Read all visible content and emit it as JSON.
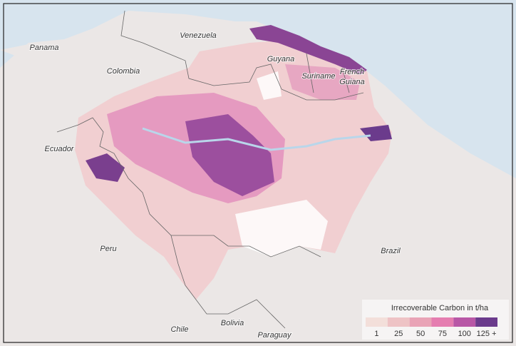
{
  "map": {
    "labels": [
      {
        "id": "panama",
        "lines": [
          "Panama"
        ]
      },
      {
        "id": "venezuela",
        "lines": [
          "Venezuela"
        ]
      },
      {
        "id": "colombia",
        "lines": [
          "Colombia"
        ]
      },
      {
        "id": "guyana",
        "lines": [
          "Guyana"
        ]
      },
      {
        "id": "suriname",
        "lines": [
          "Suriname"
        ]
      },
      {
        "id": "french-guiana",
        "lines": [
          "French",
          "Guiana"
        ]
      },
      {
        "id": "ecuador",
        "lines": [
          "Ecuador"
        ]
      },
      {
        "id": "peru",
        "lines": [
          "Peru"
        ]
      },
      {
        "id": "brazil",
        "lines": [
          "Brazil"
        ]
      },
      {
        "id": "chile",
        "lines": [
          "Chile"
        ]
      },
      {
        "id": "bolivia",
        "lines": [
          "Bolivia"
        ]
      },
      {
        "id": "paraguay",
        "lines": [
          "Paraguay"
        ]
      }
    ],
    "legend": {
      "title": "Irrecoverable Carbon in t/ha",
      "bins": [
        {
          "label": "1",
          "color": "#f3dfda"
        },
        {
          "label": "25",
          "color": "#eec3c5"
        },
        {
          "label": "50",
          "color": "#e9a3b6"
        },
        {
          "label": "75",
          "color": "#e57db0"
        },
        {
          "label": "100",
          "color": "#b857a6"
        },
        {
          "label": "125 +",
          "color": "#6b3b8c"
        }
      ]
    }
  }
}
